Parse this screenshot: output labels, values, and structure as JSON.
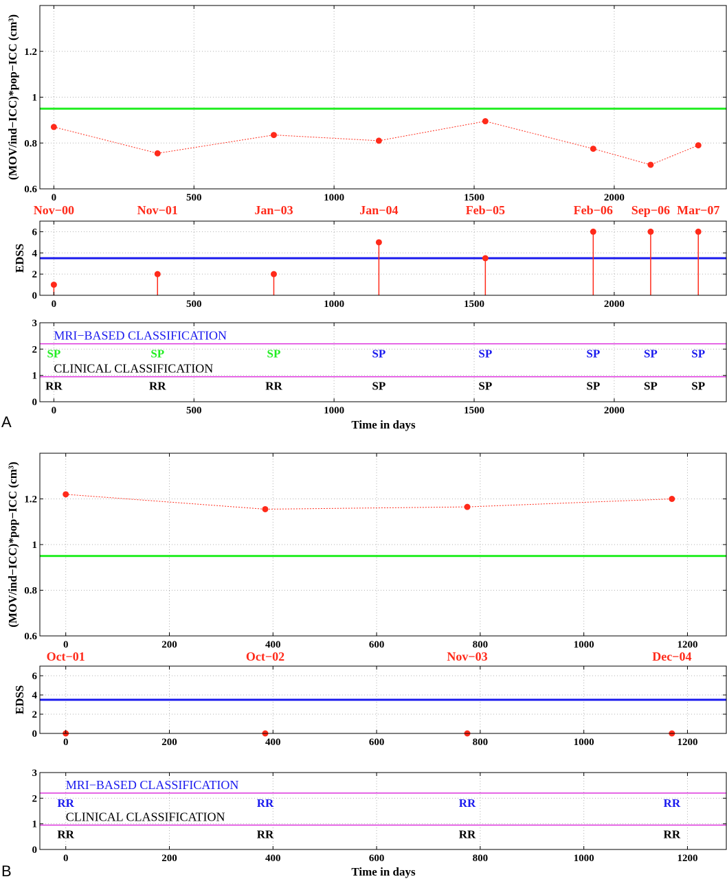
{
  "colors": {
    "marker": "#ff2a1a",
    "threshold_mov": "#22ee22",
    "threshold_edss": "#1a1aee",
    "classification_line": "#dd33dd",
    "mri_label": "#1a1aee",
    "clinical_label": "#000000",
    "class_sp_green": "#22ee22",
    "class_sp_blue": "#1a1aee",
    "class_rr_blue": "#1a1aee",
    "class_rr_black": "#000000"
  },
  "panels": [
    {
      "id": "A",
      "letter": "A",
      "x_ticks": [
        0,
        500,
        1000,
        1500,
        2000
      ],
      "xlim": [
        -50,
        2400
      ],
      "dates": [
        "Nov−00",
        "Nov−01",
        "Jan−03",
        "Jan−04",
        "Feb−05",
        "Feb−06",
        "Sep−06",
        "Mar−07"
      ],
      "mov": {
        "ylabel": "(MOV/ind−ICC)*pop−ICC (cm³)",
        "ylim": [
          0.6,
          1.4
        ],
        "y_ticks": [
          "0.6",
          "0.8",
          "1",
          "1.2"
        ],
        "threshold": 0.95,
        "x": [
          0,
          370,
          785,
          1160,
          1540,
          1925,
          2130,
          2300
        ],
        "y": [
          0.87,
          0.755,
          0.835,
          0.81,
          0.895,
          0.775,
          0.705,
          0.79
        ]
      },
      "edss": {
        "ylabel": "EDSS",
        "ylim": [
          0,
          7
        ],
        "y_ticks": [
          "0",
          "2",
          "4",
          "6"
        ],
        "threshold": 3.5,
        "x": [
          0,
          370,
          785,
          1160,
          1540,
          1925,
          2130,
          2300
        ],
        "y": [
          1,
          2,
          2,
          5,
          3.5,
          6,
          6,
          6
        ]
      },
      "classification": {
        "ylim": [
          0,
          3
        ],
        "y_ticks": [
          "0",
          "1",
          "2",
          "3"
        ],
        "mri_title": "MRI−BASED CLASSIFICATION",
        "clinical_title": "CLINICAL CLASSIFICATION",
        "mri_line": 2.2,
        "clinical_line": 0.95,
        "mri": [
          {
            "x": 0,
            "label": "SP",
            "color": "#22ee22"
          },
          {
            "x": 370,
            "label": "SP",
            "color": "#22ee22"
          },
          {
            "x": 785,
            "label": "SP",
            "color": "#22ee22"
          },
          {
            "x": 1160,
            "label": "SP",
            "color": "#1a1aee"
          },
          {
            "x": 1540,
            "label": "SP",
            "color": "#1a1aee"
          },
          {
            "x": 1925,
            "label": "SP",
            "color": "#1a1aee"
          },
          {
            "x": 2130,
            "label": "SP",
            "color": "#1a1aee"
          },
          {
            "x": 2300,
            "label": "SP",
            "color": "#1a1aee"
          }
        ],
        "clinical": [
          {
            "x": 0,
            "label": "RR"
          },
          {
            "x": 370,
            "label": "RR"
          },
          {
            "x": 785,
            "label": "RR"
          },
          {
            "x": 1160,
            "label": "SP"
          },
          {
            "x": 1540,
            "label": "SP"
          },
          {
            "x": 1925,
            "label": "SP"
          },
          {
            "x": 2130,
            "label": "SP"
          },
          {
            "x": 2300,
            "label": "SP"
          }
        ],
        "xlabel": "Time in days"
      }
    },
    {
      "id": "B",
      "letter": "B",
      "x_ticks": [
        0,
        200,
        400,
        600,
        800,
        1000,
        1200
      ],
      "xlim": [
        -50,
        1275
      ],
      "dates": [
        "Oct−01",
        "Oct−02",
        "Nov−03",
        "Dec−04"
      ],
      "mov": {
        "ylabel": "(MOV/ind−ICC)*pop−ICC (cm³)",
        "ylim": [
          0.6,
          1.4
        ],
        "y_ticks": [
          "0.6",
          "0.8",
          "1",
          "1.2"
        ],
        "threshold": 0.95,
        "x": [
          0,
          385,
          775,
          1170
        ],
        "y": [
          1.22,
          1.155,
          1.165,
          1.2
        ]
      },
      "edss": {
        "ylabel": "EDSS",
        "ylim": [
          0,
          7
        ],
        "y_ticks": [
          "0",
          "2",
          "4",
          "6"
        ],
        "threshold": 3.5,
        "x": [
          0,
          385,
          775,
          1170
        ],
        "y": [
          0,
          0,
          0,
          0
        ]
      },
      "classification": {
        "ylim": [
          0,
          3
        ],
        "y_ticks": [
          "0",
          "1",
          "2",
          "3"
        ],
        "mri_title": "MRI−BASED CLASSIFICATION",
        "clinical_title": "CLINICAL CLASSIFICATION",
        "mri_line": 2.2,
        "clinical_line": 0.95,
        "mri": [
          {
            "x": 0,
            "label": "RR",
            "color": "#1a1aee"
          },
          {
            "x": 385,
            "label": "RR",
            "color": "#1a1aee"
          },
          {
            "x": 775,
            "label": "RR",
            "color": "#1a1aee"
          },
          {
            "x": 1170,
            "label": "RR",
            "color": "#1a1aee"
          }
        ],
        "clinical": [
          {
            "x": 0,
            "label": "RR"
          },
          {
            "x": 385,
            "label": "RR"
          },
          {
            "x": 775,
            "label": "RR"
          },
          {
            "x": 1170,
            "label": "RR"
          }
        ],
        "xlabel": "Time in days"
      }
    }
  ]
}
